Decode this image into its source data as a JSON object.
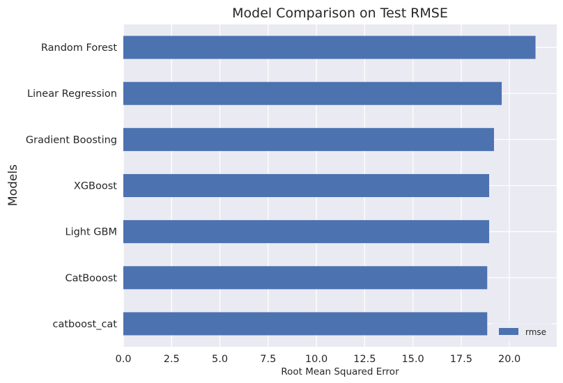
{
  "chart_data": {
    "type": "bar",
    "orientation": "horizontal",
    "title": "Model Comparison on Test RMSE",
    "xlabel": "Root Mean Squared Error",
    "ylabel": "Models",
    "categories": [
      "catboost_cat",
      "CatBooost",
      "Light GBM",
      "XGBoost",
      "Gradient Boosting",
      "Linear Regression",
      "Random Forest"
    ],
    "series": [
      {
        "name": "rmse",
        "values": [
          18.85,
          18.85,
          18.95,
          18.95,
          19.2,
          19.6,
          21.35
        ]
      }
    ],
    "xlim": [
      0,
      22.45
    ],
    "xticks": [
      0,
      2.5,
      5,
      7.5,
      10,
      12.5,
      15,
      17.5,
      20
    ],
    "xtick_labels": [
      "0.0",
      "2.5",
      "5.0",
      "7.5",
      "10.0",
      "12.5",
      "15.0",
      "17.5",
      "20.0"
    ],
    "grid": true,
    "legend_position": "bottom-right",
    "colors": {
      "bar": "#4c72b0",
      "plot_background": "#eaeaf2",
      "grid": "#ffffff"
    }
  }
}
